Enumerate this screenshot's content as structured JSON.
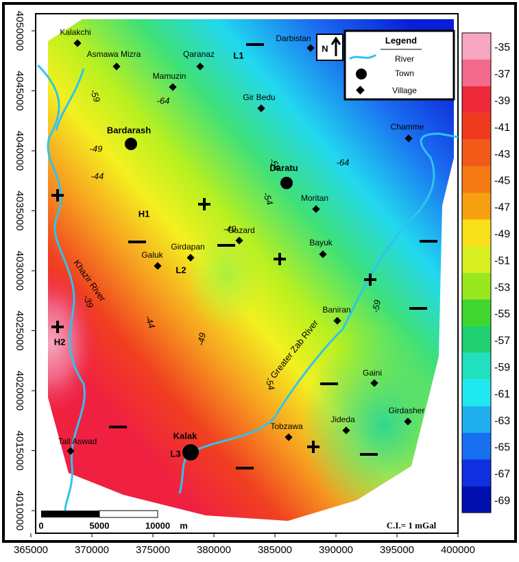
{
  "map": {
    "x_axis": [
      365000,
      370000,
      375000,
      380000,
      385000,
      390000,
      395000,
      400000
    ],
    "y_axis": [
      4050000,
      4045000,
      4040000,
      4035000,
      4030000,
      4025000,
      4020000,
      4015000,
      4010000
    ],
    "color_scale": [
      -35,
      -37,
      -39,
      -41,
      -43,
      -45,
      -47,
      -49,
      -51,
      -53,
      -55,
      -57,
      -59,
      -61,
      -63,
      -65,
      -67,
      -69
    ],
    "legend": {
      "title": "Legend",
      "items": [
        "River",
        "Town",
        "Village"
      ]
    },
    "north": "N",
    "scale_bar": {
      "labels": [
        0,
        5000,
        10000
      ],
      "unit": "m"
    },
    "contour_interval": "C.I.= 1 mGal",
    "towns": [
      "Bardarash",
      "Daratu",
      "Kalak"
    ],
    "villages": [
      "Kalakchi",
      "Asmawa Mizra",
      "Qaranaz",
      "Darbistan",
      "Mamuzin",
      "Gir Bedu",
      "Chamme",
      "Moritan",
      "Gazard",
      "Girdapan",
      "Galuk",
      "Bayuk",
      "Baniran",
      "Gaini",
      "Girdasher",
      "Jideda",
      "Tobzawa",
      "Tall Aswad"
    ],
    "anomalies": [
      "H1",
      "H2",
      "L1",
      "L2",
      "L3"
    ],
    "rivers": [
      "Khazir River",
      "Greater Zab River"
    ],
    "contour_labels": [
      -59,
      -64,
      -49,
      -44,
      -59,
      -54,
      -64,
      -39,
      -44,
      -49,
      -54,
      -59,
      -49
    ]
  }
}
